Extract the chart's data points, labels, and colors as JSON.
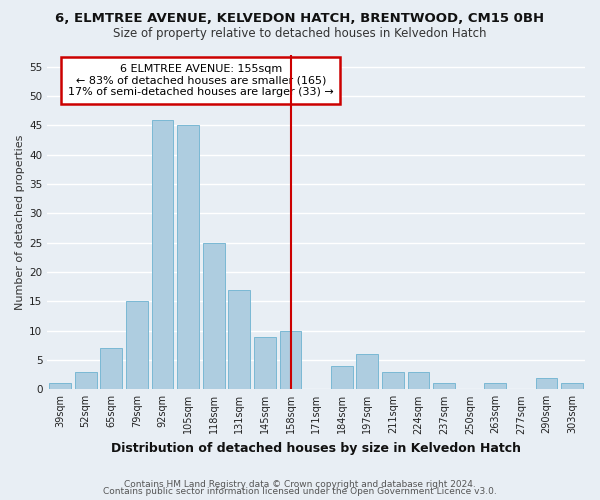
{
  "title": "6, ELMTREE AVENUE, KELVEDON HATCH, BRENTWOOD, CM15 0BH",
  "subtitle": "Size of property relative to detached houses in Kelvedon Hatch",
  "xlabel": "Distribution of detached houses by size in Kelvedon Hatch",
  "ylabel": "Number of detached properties",
  "bar_labels": [
    "39sqm",
    "52sqm",
    "65sqm",
    "79sqm",
    "92sqm",
    "105sqm",
    "118sqm",
    "131sqm",
    "145sqm",
    "158sqm",
    "171sqm",
    "184sqm",
    "197sqm",
    "211sqm",
    "224sqm",
    "237sqm",
    "250sqm",
    "263sqm",
    "277sqm",
    "290sqm",
    "303sqm"
  ],
  "bar_values": [
    1,
    3,
    7,
    15,
    46,
    45,
    25,
    17,
    9,
    10,
    0,
    4,
    6,
    3,
    3,
    1,
    0,
    1,
    0,
    2,
    1
  ],
  "bar_color": "#aecde0",
  "bar_edge_color": "#7ab8d4",
  "property_line_x": 9.0,
  "property_line_color": "#cc0000",
  "ylim": [
    0,
    57
  ],
  "yticks": [
    0,
    5,
    10,
    15,
    20,
    25,
    30,
    35,
    40,
    45,
    50,
    55
  ],
  "annotation_title": "6 ELMTREE AVENUE: 155sqm",
  "annotation_line1": "← 83% of detached houses are smaller (165)",
  "annotation_line2": "17% of semi-detached houses are larger (33) →",
  "annotation_box_color": "#ffffff",
  "annotation_box_edge": "#cc0000",
  "footer1": "Contains HM Land Registry data © Crown copyright and database right 2024.",
  "footer2": "Contains public sector information licensed under the Open Government Licence v3.0.",
  "bg_color": "#e8eef4",
  "grid_color": "#ffffff",
  "title_fontsize": 9.5,
  "subtitle_fontsize": 8.5,
  "xlabel_fontsize": 9,
  "ylabel_fontsize": 8,
  "tick_fontsize": 7,
  "footer_fontsize": 6.5,
  "ann_fontsize": 8
}
